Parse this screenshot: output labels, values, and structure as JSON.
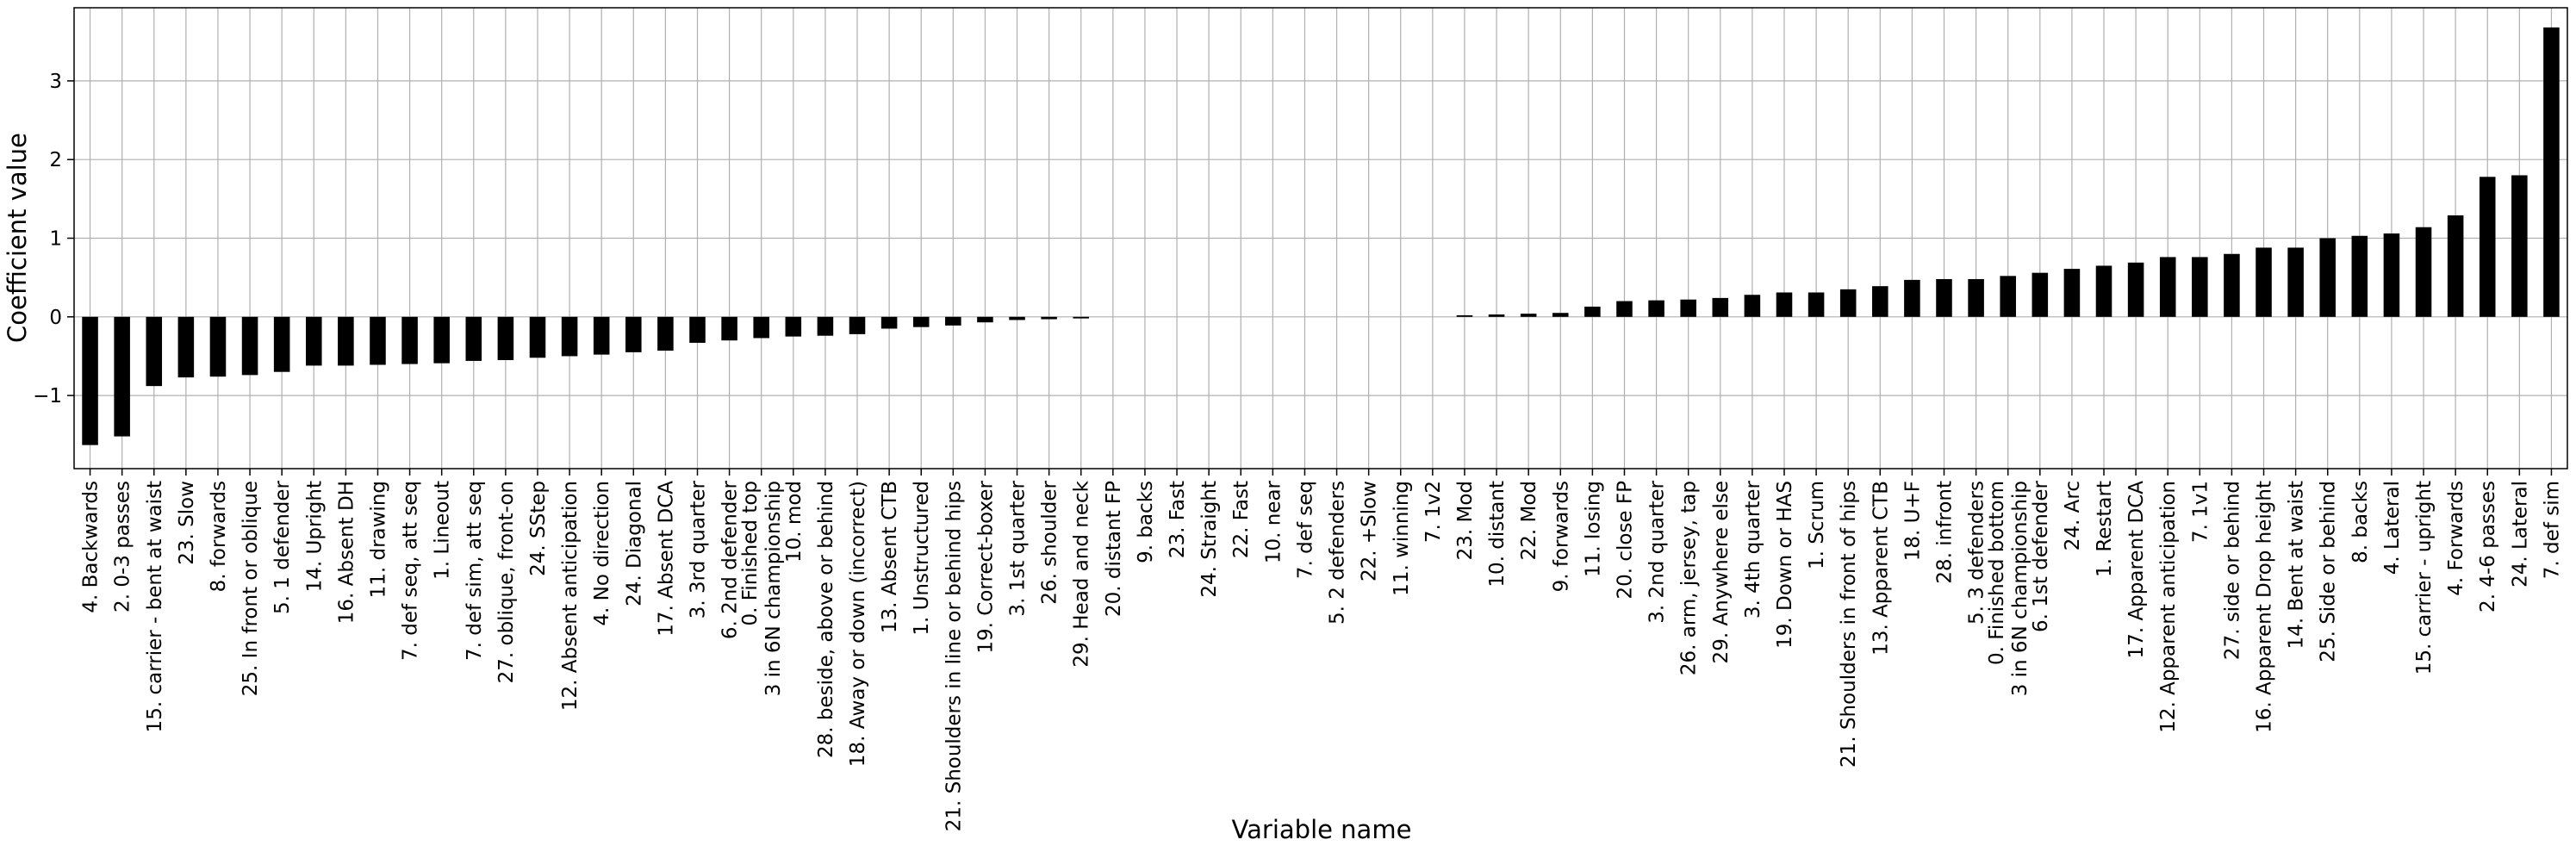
{
  "chart_data": {
    "type": "bar",
    "title": "",
    "xlabel": "Variable name",
    "ylabel": "Coefficient value",
    "ylim": [
      -1.93,
      3.93
    ],
    "yticks": [
      -1,
      0,
      1,
      2,
      3
    ],
    "yticks_labels": [
      "−1",
      "0",
      "1",
      "2",
      "3"
    ],
    "grid": true,
    "bar_color": "#000000",
    "grid_color": "#b0b0b0",
    "categories": [
      "4. Backwards",
      "2. 0-3 passes",
      "15. carrier - bent at waist",
      "23. Slow",
      "8. forwards",
      "25. In front or oblique",
      "5. 1 defender",
      "14. Upright",
      "16. Absent DH",
      "11. drawing",
      "7. def seq, att seq",
      "1. Lineout",
      "7. def sim, att seq",
      "27. oblique, front-on",
      "24. SStep",
      "12. Absent anticipation",
      "4. No direction",
      "24. Diagonal",
      "17. Absent DCA",
      "3. 3rd quarter",
      "6. 2nd defender",
      "0. Finished top\n3 in 6N championship",
      "10. mod",
      "28. beside, above or behind",
      "18. Away or down (incorrect)",
      "13. Absent CTB",
      "1. Unstructured",
      "21. Shoulders in line or behind hips",
      "19. Correct-boxer",
      "3. 1st quarter",
      "26. shoulder",
      "29. Head and neck",
      "20. distant FP",
      "9. backs",
      "23. Fast",
      "24. Straight",
      "22. Fast",
      "10. near",
      "7. def seq",
      "5. 2 defenders",
      "22. +Slow",
      "11. winning",
      "7. 1v2",
      "23. Mod",
      "10. distant",
      "22. Mod",
      "9. forwards",
      "11. losing",
      "20. close FP",
      "3. 2nd quarter",
      "26. arm, jersey, tap",
      "29. Anywhere else",
      "3. 4th quarter",
      "19. Down or HAS",
      "1. Scrum",
      "21. Shoulders in front of hips",
      "13. Apparent CTB",
      "18. U+F",
      "28. infront",
      "5. 3 defenders",
      "0. Finished bottom\n3 in 6N championship",
      "6. 1st defender",
      "24. Arc",
      "1. Restart",
      "17. Apparent DCA",
      "12. Apparent anticipation",
      "7. 1v1",
      "27. side or behind",
      "16. Apparent Drop height",
      "14. Bent at waist",
      "25. Side or behind",
      "8. backs",
      "4. Lateral",
      "15. carrier - upright",
      "4. Forwards",
      "2. 4-6 passes",
      "24. Lateral",
      "7. def sim"
    ],
    "values": [
      -1.63,
      -1.52,
      -0.88,
      -0.77,
      -0.76,
      -0.74,
      -0.7,
      -0.62,
      -0.62,
      -0.61,
      -0.6,
      -0.59,
      -0.56,
      -0.55,
      -0.52,
      -0.5,
      -0.48,
      -0.45,
      -0.43,
      -0.33,
      -0.3,
      -0.27,
      -0.25,
      -0.24,
      -0.22,
      -0.15,
      -0.13,
      -0.11,
      -0.07,
      -0.04,
      -0.03,
      -0.02,
      0.0,
      0.0,
      0.0,
      0.0,
      0.0,
      0.0,
      0.0,
      0.0,
      0.0,
      0.0,
      0.0,
      0.02,
      0.03,
      0.04,
      0.05,
      0.13,
      0.2,
      0.21,
      0.22,
      0.24,
      0.28,
      0.31,
      0.31,
      0.35,
      0.39,
      0.47,
      0.48,
      0.48,
      0.52,
      0.56,
      0.61,
      0.65,
      0.69,
      0.76,
      0.76,
      0.8,
      0.88,
      0.88,
      1.0,
      1.03,
      1.06,
      1.14,
      1.29,
      1.78,
      1.8,
      3.68
    ]
  }
}
